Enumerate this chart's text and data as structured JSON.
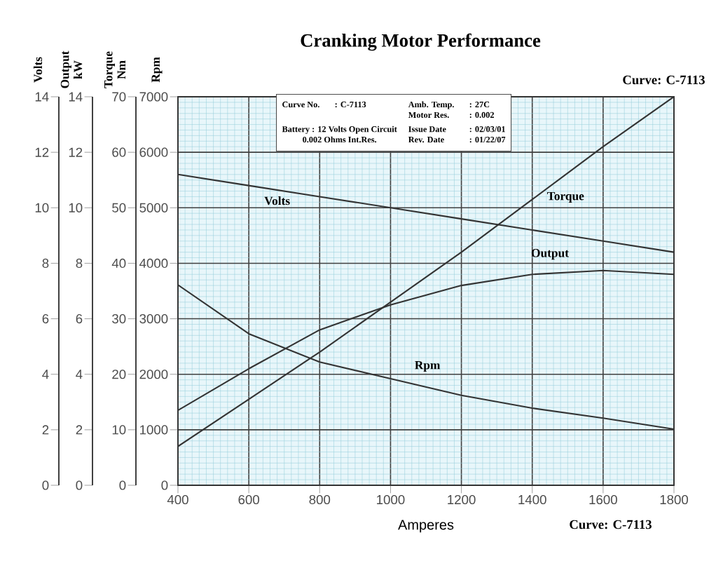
{
  "chart_data": {
    "type": "line",
    "title": "Cranking Motor Performance",
    "xlabel": "Amperes",
    "ylabel": "Rpm",
    "y2label": "Torque Nm",
    "y3label": "Output kW",
    "x": [
      400,
      600,
      800,
      1000,
      1200,
      1400,
      1600,
      1800
    ],
    "xlim": [
      400,
      1800
    ],
    "xticks": [
      400,
      {
        "value": 420,
        "label": null
      },
      {
        "value": 440,
        "label": null
      },
      {
        "value": 460,
        "label": null
      },
      {
        "value": 480,
        "label": null
      },
      {
        "value": 500,
        "label": null
      },
      {
        "value": 520,
        "label": null
      },
      {
        "value": 540,
        "label": null
      },
      {
        "value": 560,
        "label": null
      },
      {
        "value": 580,
        "label": null
      },
      600,
      {
        "value": 620,
        "label": null
      },
      {
        "value": 640,
        "label": null
      },
      {
        "value": 660,
        "label": null
      },
      {
        "value": 680,
        "label": null
      },
      {
        "value": 700,
        "label": null
      },
      {
        "value": 720,
        "label": null
      },
      {
        "value": 740,
        "label": null
      },
      {
        "value": 760,
        "label": null
      },
      {
        "value": 780,
        "label": null
      },
      800,
      {
        "value": 820,
        "label": null
      },
      {
        "value": 840,
        "label": null
      },
      {
        "value": 860,
        "label": null
      },
      {
        "value": 880,
        "label": null
      },
      {
        "value": 900,
        "label": null
      },
      {
        "value": 920,
        "label": null
      },
      {
        "value": 940,
        "label": null
      },
      {
        "value": 960,
        "label": null
      },
      {
        "value": 980,
        "label": null
      },
      1000,
      {
        "value": 1020,
        "label": null
      },
      {
        "value": 1040,
        "label": null
      },
      {
        "value": 1060,
        "label": null
      },
      {
        "value": 1080,
        "label": null
      },
      {
        "value": 1100,
        "label": null
      },
      {
        "value": 1120,
        "label": null
      },
      {
        "value": 1140,
        "label": null
      },
      {
        "value": 1160,
        "label": null
      },
      {
        "value": 1180,
        "label": null
      },
      1200,
      {
        "value": 1220,
        "label": null
      },
      {
        "value": 1240,
        "label": null
      },
      {
        "value": 1260,
        "label": null
      },
      {
        "value": 1280,
        "label": null
      },
      {
        "value": 1300,
        "label": null
      },
      {
        "value": 1320,
        "label": null
      },
      {
        "value": 1340,
        "label": null
      },
      {
        "value": 1360,
        "label": null
      },
      {
        "value": 1380,
        "label": null
      },
      1400,
      {
        "value": 1420,
        "label": null
      },
      {
        "value": 1440,
        "label": null
      },
      {
        "value": 1460,
        "label": null
      },
      {
        "value": 1480,
        "label": null
      },
      {
        "value": 1500,
        "label": null
      },
      {
        "value": 1520,
        "label": null
      },
      {
        "value": 1540,
        "label": null
      },
      {
        "value": 1560,
        "label": null
      },
      {
        "value": 1580,
        "label": null
      },
      1600,
      {
        "value": 1620,
        "label": null
      },
      {
        "value": 1640,
        "label": null
      },
      {
        "value": 1660,
        "label": null
      },
      {
        "value": 1680,
        "label": null
      },
      {
        "value": 1700,
        "label": null
      },
      {
        "value": 1720,
        "label": null
      },
      {
        "value": 1740,
        "label": null
      },
      {
        "value": 1760,
        "label": null
      },
      {
        "value": 1780,
        "label": null
      },
      1800
    ],
    "ylim": [
      0,
      7000
    ],
    "yticks": [
      0,
      {
        "value": 100,
        "label": null
      },
      {
        "value": 200,
        "label": null
      },
      {
        "value": 300,
        "label": null
      },
      {
        "value": 400,
        "label": null
      },
      {
        "value": 500,
        "label": null
      },
      {
        "value": 600,
        "label": null
      },
      {
        "value": 700,
        "label": null
      },
      {
        "value": 800,
        "label": null
      },
      {
        "value": 900,
        "label": null
      },
      1000,
      {
        "value": 1100,
        "label": null
      },
      {
        "value": 1200,
        "label": null
      },
      {
        "value": 1300,
        "label": null
      },
      {
        "value": 1400,
        "label": null
      },
      {
        "value": 1500,
        "label": null
      },
      {
        "value": 1600,
        "label": null
      },
      {
        "value": 1700,
        "label": null
      },
      {
        "value": 1800,
        "label": null
      },
      {
        "value": 1900,
        "label": null
      },
      2000,
      {
        "value": 2100,
        "label": null
      },
      {
        "value": 2200,
        "label": null
      },
      {
        "value": 2300,
        "label": null
      },
      {
        "value": 2400,
        "label": null
      },
      {
        "value": 2500,
        "label": null
      },
      {
        "value": 2600,
        "label": null
      },
      {
        "value": 2700,
        "label": null
      },
      {
        "value": 2800,
        "label": null
      },
      {
        "value": 2900,
        "label": null
      },
      3000,
      {
        "value": 3100,
        "label": null
      },
      {
        "value": 3200,
        "label": null
      },
      {
        "value": 3300,
        "label": null
      },
      {
        "value": 3400,
        "label": null
      },
      {
        "value": 3500,
        "label": null
      },
      {
        "value": 3600,
        "label": null
      },
      {
        "value": 3700,
        "label": null
      },
      {
        "value": 3800,
        "label": null
      },
      {
        "value": 3900,
        "label": null
      },
      4000,
      {
        "value": 4100,
        "label": null
      },
      {
        "value": 4200,
        "label": null
      },
      {
        "value": 4300,
        "label": null
      },
      {
        "value": 4400,
        "label": null
      },
      {
        "value": 4500,
        "label": null
      },
      {
        "value": 4600,
        "label": null
      },
      {
        "value": 4700,
        "label": null
      },
      {
        "value": 4800,
        "label": null
      },
      {
        "value": 4900,
        "label": null
      },
      5000,
      {
        "value": 5100,
        "label": null
      },
      {
        "value": 5200,
        "label": null
      },
      {
        "value": 5300,
        "label": null
      },
      {
        "value": 5400,
        "label": null
      },
      {
        "value": 5500,
        "label": null
      },
      {
        "value": 5600,
        "label": null
      },
      {
        "value": 5700,
        "label": null
      },
      {
        "value": 5800,
        "label": null
      },
      {
        "value": 5900,
        "label": null
      },
      6000,
      {
        "value": 6100,
        "label": null
      },
      {
        "value": 6200,
        "label": null
      },
      {
        "value": 6300,
        "label": null
      },
      {
        "value": 6400,
        "label": null
      },
      {
        "value": 6500,
        "label": null
      },
      {
        "value": 6600,
        "label": null
      },
      {
        "value": 6700,
        "label": null
      },
      {
        "value": 6800,
        "label": null
      },
      {
        "value": 6900,
        "label": null
      },
      7000
    ],
    "y2lim": [
      0,
      70
    ],
    "y2ticks": [
      0,
      10,
      20,
      30,
      40,
      50,
      60,
      70
    ],
    "y3lim": [
      0,
      14
    ],
    "y3ticks": [
      0,
      2,
      4,
      6,
      8,
      10,
      12,
      14
    ],
    "series": [
      {
        "name": "Volts",
        "axis": "y3",
        "color": "#333333",
        "values": [
          11.2,
          10.8,
          10.4,
          10.0,
          9.6,
          9.2,
          8.8,
          8.4
        ]
      },
      {
        "name": "Torque",
        "axis": "y2",
        "color": "#333333",
        "values": [
          7,
          15.5,
          24,
          33,
          42,
          51.5,
          61,
          70
        ]
      },
      {
        "name": "Output",
        "axis": "y3",
        "color": "#333333",
        "values": [
          2.7,
          4.2,
          5.6,
          6.5,
          7.2,
          7.6,
          7.74,
          7.6
        ]
      },
      {
        "name": "Rpm",
        "axis": "y",
        "color": "#333333",
        "values": [
          3610,
          2730,
          2220,
          1920,
          1620,
          1390,
          1210,
          1010
        ]
      }
    ],
    "annotations": [
      "Curve: C-7113",
      "Curve: C-7113",
      "Curve No.",
      ": C-7113",
      "Amb. Temp.",
      ": 27C",
      "Motor Res.",
      ": 0.002",
      "Battery : 12 Volts Open Circuit",
      "0.002 Ohms Int.Res.",
      "Issue Date",
      ": 02/03/01",
      "Rev. Date",
      ": 01/22/07",
      "Volts",
      "0",
      "2",
      "4",
      "6",
      "8",
      "10",
      "12",
      "14"
    ],
    "grid": true,
    "marker": "none",
    "line_style": "solid"
  }
}
